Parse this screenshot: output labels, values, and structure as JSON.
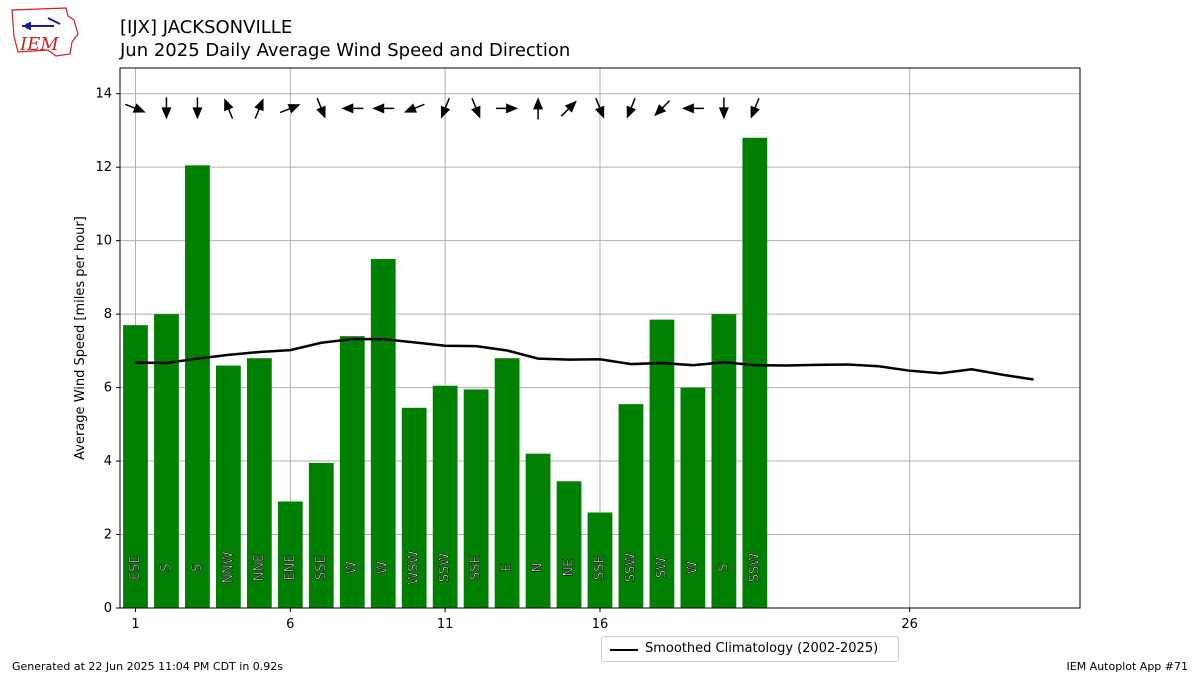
{
  "header": {
    "title_line1": "[IJX] JACKSONVILLE",
    "title_line2": "Jun 2025 Daily Average Wind Speed and Direction"
  },
  "logo": {
    "text": "IEM"
  },
  "footer": {
    "generated": "Generated at 22 Jun 2025 11:04 PM CDT in 0.92s",
    "app": "IEM Autoplot App #71"
  },
  "legend": {
    "climatology_label": "Smoothed Climatology (2002-2025)"
  },
  "colors": {
    "bar": "#008000",
    "line": "#000000",
    "grid": "#b0b0b0",
    "logo_red": "#cc2222",
    "logo_blue": "#1a1aa6"
  },
  "chart_data": {
    "type": "bar",
    "ylabel": "Average Wind Speed [miles per hour]",
    "xlabel": "",
    "xlim": [
      0.5,
      31.5
    ],
    "ylim": [
      0,
      14.7
    ],
    "x_ticks": [
      1,
      6,
      11,
      16,
      26
    ],
    "y_ticks": [
      0,
      2,
      4,
      6,
      8,
      10,
      12,
      14
    ],
    "grid": true,
    "series": [
      {
        "type": "bar",
        "days": [
          1,
          2,
          3,
          4,
          5,
          6,
          7,
          8,
          9,
          10,
          11,
          12,
          13,
          14,
          15,
          16,
          17,
          18,
          19,
          20,
          21
        ],
        "values": [
          7.7,
          8.0,
          12.05,
          6.6,
          6.8,
          2.9,
          3.95,
          7.4,
          9.5,
          5.45,
          6.05,
          5.95,
          6.8,
          4.2,
          3.45,
          2.6,
          5.55,
          7.85,
          6.0,
          8.0,
          12.8
        ],
        "directions": [
          "ESE",
          "S",
          "S",
          "NNW",
          "NNE",
          "ENE",
          "SSE",
          "W",
          "W",
          "WSW",
          "SSW",
          "SSE",
          "E",
          "N",
          "NE",
          "SSE",
          "SSW",
          "SW",
          "W",
          "S",
          "SSW"
        ]
      },
      {
        "type": "line",
        "name": "Smoothed Climatology (2002-2025)",
        "x": [
          1,
          2,
          3,
          4,
          5,
          6,
          7,
          8,
          9,
          10,
          11,
          12,
          13,
          14,
          15,
          16,
          17,
          18,
          19,
          20,
          21,
          22,
          23,
          24,
          25,
          26,
          27,
          28,
          29,
          30
        ],
        "y": [
          6.68,
          6.67,
          6.79,
          6.89,
          6.97,
          7.02,
          7.22,
          7.32,
          7.32,
          7.23,
          7.14,
          7.13,
          7.01,
          6.79,
          6.76,
          6.77,
          6.64,
          6.67,
          6.61,
          6.69,
          6.61,
          6.6,
          6.62,
          6.63,
          6.58,
          6.46,
          6.39,
          6.5,
          6.35,
          6.22
        ]
      }
    ],
    "arrows": {
      "days": [
        1,
        2,
        3,
        4,
        5,
        6,
        7,
        8,
        9,
        10,
        11,
        12,
        13,
        14,
        15,
        16,
        17,
        18,
        19,
        20,
        21
      ],
      "direction_angle_deg": [
        112,
        180,
        180,
        338,
        22,
        68,
        158,
        270,
        270,
        248,
        202,
        158,
        90,
        0,
        45,
        158,
        202,
        225,
        270,
        180,
        202
      ]
    }
  }
}
